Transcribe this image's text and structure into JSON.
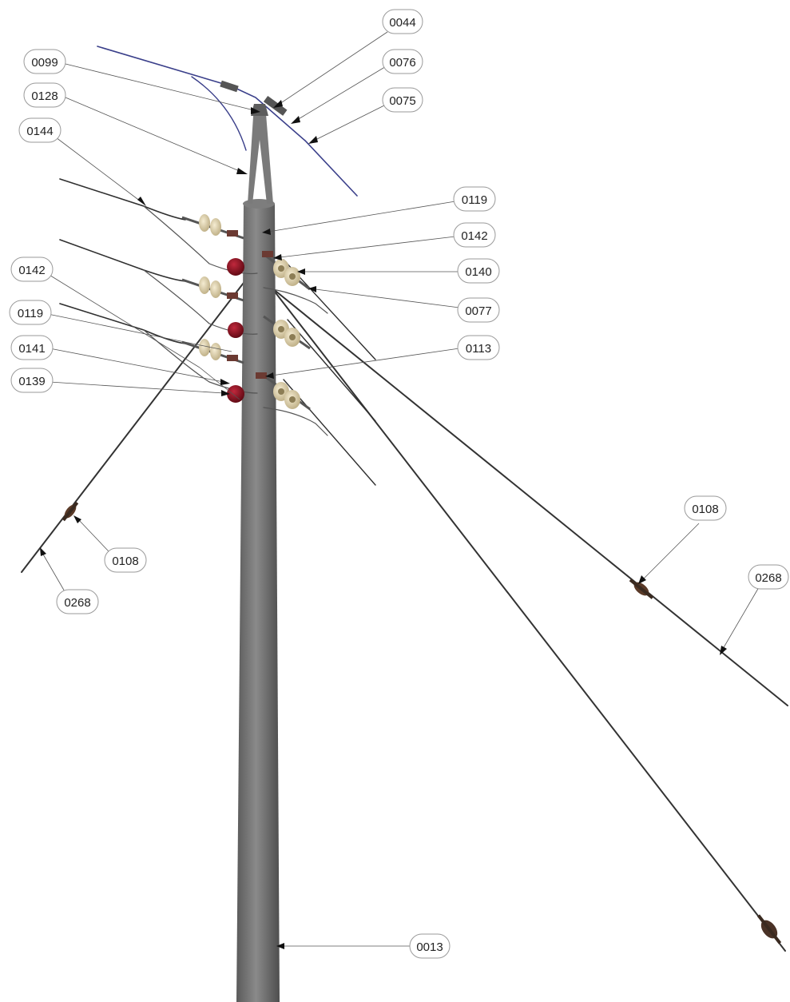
{
  "diagram": {
    "colors": {
      "pole": "#6d6d6d",
      "pole_shadow": "#4a4a4a",
      "wire": "#2f2f2f",
      "guy_wire": "#333333",
      "overhead_ground_wire": "#3a3f8a",
      "insulator": "#e5d7b0",
      "arrester": "#8b1020",
      "callout_border": "#9a9a9a"
    },
    "callouts": [
      {
        "id": "c-0044",
        "label": "0044"
      },
      {
        "id": "c-0076",
        "label": "0076"
      },
      {
        "id": "c-0075",
        "label": "0075"
      },
      {
        "id": "c-0099",
        "label": "0099"
      },
      {
        "id": "c-0128",
        "label": "0128"
      },
      {
        "id": "c-0144",
        "label": "0144"
      },
      {
        "id": "c-0119a",
        "label": "0119"
      },
      {
        "id": "c-0142a",
        "label": "0142"
      },
      {
        "id": "c-0140",
        "label": "0140"
      },
      {
        "id": "c-0077",
        "label": "0077"
      },
      {
        "id": "c-0113",
        "label": "0113"
      },
      {
        "id": "c-0142b",
        "label": "0142"
      },
      {
        "id": "c-0119b",
        "label": "0119"
      },
      {
        "id": "c-0141",
        "label": "0141"
      },
      {
        "id": "c-0139",
        "label": "0139"
      },
      {
        "id": "c-0108a",
        "label": "0108"
      },
      {
        "id": "c-0268a",
        "label": "0268"
      },
      {
        "id": "c-0108b",
        "label": "0108"
      },
      {
        "id": "c-0268b",
        "label": "0268"
      },
      {
        "id": "c-0013",
        "label": "0013"
      }
    ]
  }
}
